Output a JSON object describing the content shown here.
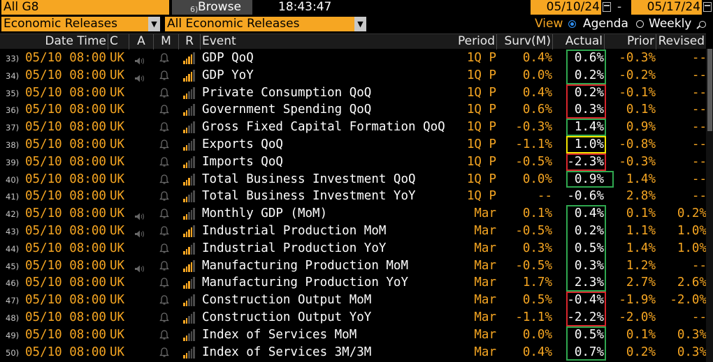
{
  "topbar": {
    "group": "All G8",
    "browse_num": "6)",
    "browse": "Browse",
    "time": "18:43:47",
    "start_date": "05/10/24",
    "end_date": "05/17/24",
    "dash": "-"
  },
  "filters": {
    "type": "Economic Releases",
    "subtype": "All Economic Releases",
    "view_label": "View",
    "agenda": "Agenda",
    "weekly": "Weekly"
  },
  "columns": {
    "date_time": "Date Time",
    "c": "C",
    "a": "A",
    "m": "M",
    "r": "R",
    "event": "Event",
    "period": "Period",
    "surv": "Surv(M)",
    "actual": "Actual",
    "prior": "Prior",
    "revised": "Revised"
  },
  "colors": {
    "accent": "#f6a622",
    "good": "#2fa84f",
    "bad": "#d8262c",
    "neutral": "#f2e400"
  },
  "rows": [
    {
      "num": "33)",
      "date": "05/10 08:00",
      "c": "UK",
      "audio": true,
      "rel": 4,
      "event": "GDP QoQ",
      "period": "1Q P",
      "surv": "0.4%",
      "actual": "0.6%",
      "prior": "-0.3%",
      "revised": "--",
      "hl": "good"
    },
    {
      "num": "34)",
      "date": "05/10 08:00",
      "c": "UK",
      "audio": true,
      "rel": 4,
      "event": "GDP YoY",
      "period": "1Q P",
      "surv": "0.0%",
      "actual": "0.2%",
      "prior": "-0.2%",
      "revised": "--",
      "hl": "good"
    },
    {
      "num": "35)",
      "date": "05/10 08:00",
      "c": "UK",
      "audio": false,
      "rel": 2,
      "event": "Private Consumption QoQ",
      "period": "1Q P",
      "surv": "0.4%",
      "actual": "0.2%",
      "prior": "-0.1%",
      "revised": "--",
      "hl": "bad"
    },
    {
      "num": "36)",
      "date": "05/10 08:00",
      "c": "UK",
      "audio": false,
      "rel": 2,
      "event": "Government Spending QoQ",
      "period": "1Q P",
      "surv": "0.6%",
      "actual": "0.3%",
      "prior": "0.1%",
      "revised": "--",
      "hl": "bad"
    },
    {
      "num": "37)",
      "date": "05/10 08:00",
      "c": "UK",
      "audio": false,
      "rel": 2,
      "event": "Gross Fixed Capital Formation QoQ",
      "period": "1Q P",
      "surv": "-0.3%",
      "actual": "1.4%",
      "prior": "0.9%",
      "revised": "--",
      "hl": "good"
    },
    {
      "num": "38)",
      "date": "05/10 08:00",
      "c": "UK",
      "audio": false,
      "rel": 2,
      "event": "Exports QoQ",
      "period": "1Q P",
      "surv": "-1.1%",
      "actual": "1.0%",
      "prior": "-0.8%",
      "revised": "--",
      "hl": "neutral"
    },
    {
      "num": "39)",
      "date": "05/10 08:00",
      "c": "UK",
      "audio": false,
      "rel": 2,
      "event": "Imports QoQ",
      "period": "1Q P",
      "surv": "-0.5%",
      "actual": "-2.3%",
      "prior": "-0.3%",
      "revised": "--",
      "hl": "bad"
    },
    {
      "num": "40)",
      "date": "05/10 08:00",
      "c": "UK",
      "audio": false,
      "rel": 3,
      "event": "Total Business Investment QoQ",
      "period": "1Q P",
      "surv": "0.0%",
      "actual": "0.9%",
      "prior": "1.4%",
      "revised": "--",
      "hl": "good"
    },
    {
      "num": "41)",
      "date": "05/10 08:00",
      "c": "UK",
      "audio": false,
      "rel": 2,
      "event": "Total Business Investment YoY",
      "period": "1Q P",
      "surv": "--",
      "actual": "-0.6%",
      "prior": "2.8%",
      "revised": "--",
      "hl": ""
    },
    {
      "num": "42)",
      "date": "05/10 08:00",
      "c": "UK",
      "audio": true,
      "rel": 2,
      "event": "Monthly GDP (MoM)",
      "period": "Mar",
      "surv": "0.1%",
      "actual": "0.4%",
      "prior": "0.1%",
      "revised": "0.2%",
      "hl": "good"
    },
    {
      "num": "43)",
      "date": "05/10 08:00",
      "c": "UK",
      "audio": true,
      "rel": 4,
      "event": "Industrial Production MoM",
      "period": "Mar",
      "surv": "-0.5%",
      "actual": "0.2%",
      "prior": "1.1%",
      "revised": "1.0%",
      "hl": "good"
    },
    {
      "num": "44)",
      "date": "05/10 08:00",
      "c": "UK",
      "audio": false,
      "rel": 3,
      "event": "Industrial Production YoY",
      "period": "Mar",
      "surv": "0.3%",
      "actual": "0.5%",
      "prior": "1.4%",
      "revised": "1.0%",
      "hl": "good"
    },
    {
      "num": "45)",
      "date": "05/10 08:00",
      "c": "UK",
      "audio": true,
      "rel": 4,
      "event": "Manufacturing Production MoM",
      "period": "Mar",
      "surv": "-0.5%",
      "actual": "0.3%",
      "prior": "1.2%",
      "revised": "--",
      "hl": "good"
    },
    {
      "num": "46)",
      "date": "05/10 08:00",
      "c": "UK",
      "audio": false,
      "rel": 3,
      "event": "Manufacturing Production YoY",
      "period": "Mar",
      "surv": "1.7%",
      "actual": "2.3%",
      "prior": "2.7%",
      "revised": "2.6%",
      "hl": "good"
    },
    {
      "num": "47)",
      "date": "05/10 08:00",
      "c": "UK",
      "audio": false,
      "rel": 2,
      "event": "Construction Output MoM",
      "period": "Mar",
      "surv": "0.5%",
      "actual": "-0.4%",
      "prior": "-1.9%",
      "revised": "-2.0%",
      "hl": "bad"
    },
    {
      "num": "48)",
      "date": "05/10 08:00",
      "c": "UK",
      "audio": false,
      "rel": 2,
      "event": "Construction Output YoY",
      "period": "Mar",
      "surv": "-1.1%",
      "actual": "-2.2%",
      "prior": "-2.0%",
      "revised": "--",
      "hl": "bad"
    },
    {
      "num": "49)",
      "date": "05/10 08:00",
      "c": "UK",
      "audio": false,
      "rel": 2,
      "event": "Index of Services MoM",
      "period": "Mar",
      "surv": "0.0%",
      "actual": "0.5%",
      "prior": "0.1%",
      "revised": "0.3%",
      "hl": "good"
    },
    {
      "num": "50)",
      "date": "05/10 08:00",
      "c": "UK",
      "audio": false,
      "rel": 2,
      "event": "Index of Services 3M/3M",
      "period": "Mar",
      "surv": "0.4%",
      "actual": "0.7%",
      "prior": "0.2%",
      "revised": "0.3%",
      "hl": "good"
    }
  ]
}
